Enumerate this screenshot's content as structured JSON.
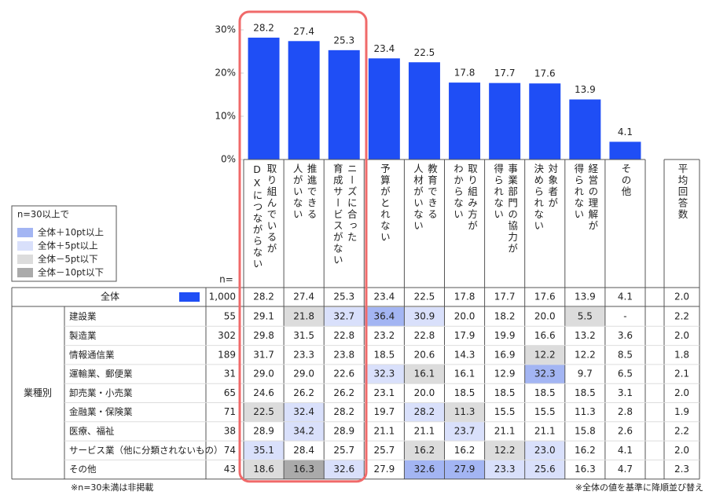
{
  "chart_data": {
    "type": "bar",
    "categories": [
      "取り組んでいるが\nDXにつながらない",
      "推進できる\n人がいない",
      "ニーズに合った\n育成サービスがない",
      "予算がとれない",
      "教育できる\n人材がいない",
      "取り組み方が\nわからない",
      "事業部門の協力が\n得られない",
      "対象者が\n決められない",
      "経営の理解が\n得られない",
      "その他"
    ],
    "values": [
      28.2,
      27.4,
      25.3,
      23.4,
      22.5,
      17.8,
      17.7,
      17.6,
      13.9,
      4.1
    ],
    "color": "#1f4ef5",
    "ylim": [
      0,
      30
    ],
    "yticks": [
      {
        "value": 0,
        "label": "0%"
      },
      {
        "value": 10,
        "label": "10%"
      },
      {
        "value": 20,
        "label": "20%"
      },
      {
        "value": 30,
        "label": "30%"
      }
    ]
  },
  "avg_header": "平均回答数",
  "n_header": "n=",
  "legend": {
    "title": "n=30以上で",
    "items": [
      {
        "label": "全体＋10pt以上",
        "color": "#a3b5f3"
      },
      {
        "label": "全体＋5pt以上",
        "color": "#d9e0fb"
      },
      {
        "label": "全体－5pt以下",
        "color": "#dcdcdc"
      },
      {
        "label": "全体－10pt以下",
        "color": "#aaaaaa"
      }
    ]
  },
  "table": {
    "total": {
      "label": "全体",
      "color": "#1f4ef5",
      "n": "1,000",
      "avg": "2.0"
    },
    "group": "業種別",
    "rows": [
      {
        "label": "建設業",
        "n": 55,
        "cells": [
          "29.1",
          "21.8",
          "32.7",
          "36.4",
          "30.9",
          "20.0",
          "18.2",
          "20.0",
          "5.5",
          "-"
        ],
        "fills": [
          null,
          "#dcdcdc",
          "#d9e0fb",
          "#a3b5f3",
          "#d9e0fb",
          null,
          null,
          null,
          "#dcdcdc",
          null
        ],
        "avg": "2.2"
      },
      {
        "label": "製造業",
        "n": 302,
        "cells": [
          "29.8",
          "31.5",
          "22.8",
          "23.2",
          "22.8",
          "17.9",
          "19.9",
          "16.6",
          "13.2",
          "3.6"
        ],
        "fills": [
          null,
          null,
          null,
          null,
          null,
          null,
          null,
          null,
          null,
          null
        ],
        "avg": "2.0"
      },
      {
        "label": "情報通信業",
        "n": 189,
        "cells": [
          "31.7",
          "23.3",
          "23.8",
          "18.5",
          "20.6",
          "14.3",
          "16.9",
          "12.2",
          "12.2",
          "8.5"
        ],
        "fills": [
          null,
          null,
          null,
          null,
          null,
          null,
          null,
          "#dcdcdc",
          null,
          null
        ],
        "avg": "1.8"
      },
      {
        "label": "運輸業、郵便業",
        "n": 31,
        "cells": [
          "29.0",
          "29.0",
          "22.6",
          "32.3",
          "16.1",
          "16.1",
          "12.9",
          "32.3",
          "9.7",
          "6.5"
        ],
        "fills": [
          null,
          null,
          null,
          "#d9e0fb",
          "#dcdcdc",
          null,
          null,
          "#a3b5f3",
          null,
          null
        ],
        "avg": "2.1"
      },
      {
        "label": "卸売業・小売業",
        "n": 65,
        "cells": [
          "24.6",
          "26.2",
          "26.2",
          "23.1",
          "20.0",
          "18.5",
          "18.5",
          "18.5",
          "18.5",
          "3.1"
        ],
        "fills": [
          null,
          null,
          null,
          null,
          null,
          null,
          null,
          null,
          null,
          null
        ],
        "avg": "2.0"
      },
      {
        "label": "金融業・保険業",
        "n": 71,
        "cells": [
          "22.5",
          "32.4",
          "28.2",
          "19.7",
          "28.2",
          "11.3",
          "15.5",
          "15.5",
          "11.3",
          "2.8"
        ],
        "fills": [
          "#dcdcdc",
          "#d9e0fb",
          null,
          null,
          "#d9e0fb",
          "#dcdcdc",
          null,
          null,
          null,
          null
        ],
        "avg": "1.9"
      },
      {
        "label": "医療、福祉",
        "n": 38,
        "cells": [
          "28.9",
          "34.2",
          "28.9",
          "21.1",
          "21.1",
          "23.7",
          "21.1",
          "21.1",
          "15.8",
          "2.6"
        ],
        "fills": [
          null,
          "#d9e0fb",
          null,
          null,
          null,
          "#d9e0fb",
          null,
          null,
          null,
          null
        ],
        "avg": "2.2"
      },
      {
        "label": "サービス業（他に分類されないもの）",
        "n": 74,
        "cells": [
          "35.1",
          "28.4",
          "25.7",
          "25.7",
          "16.2",
          "16.2",
          "12.2",
          "23.0",
          "16.2",
          "4.1"
        ],
        "fills": [
          "#d9e0fb",
          null,
          null,
          null,
          "#dcdcdc",
          null,
          "#dcdcdc",
          "#d9e0fb",
          null,
          null
        ],
        "avg": "2.0"
      },
      {
        "label": "その他",
        "n": 43,
        "cells": [
          "18.6",
          "16.3",
          "32.6",
          "27.9",
          "32.6",
          "27.9",
          "23.3",
          "25.6",
          "16.3",
          "4.7"
        ],
        "fills": [
          "#dcdcdc",
          "#aaaaaa",
          "#d9e0fb",
          null,
          "#a3b5f3",
          "#a3b5f3",
          "#d9e0fb",
          "#d9e0fb",
          null,
          null
        ],
        "avg": "2.3"
      }
    ]
  },
  "notes": [
    "※n=30未満は非掲載",
    "※全体の値を基準に降順並び替え"
  ]
}
